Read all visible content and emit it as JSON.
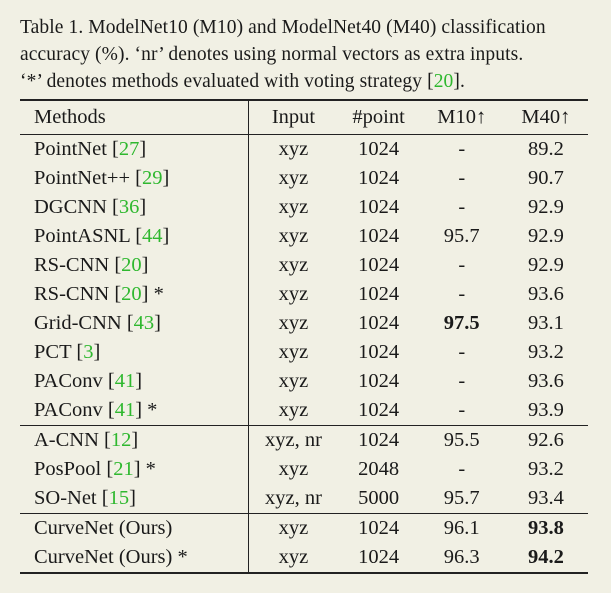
{
  "caption": {
    "line1": "Table 1. ModelNet10 (M10) and ModelNet40 (M40) classification",
    "line2": "accuracy (%).  ‘nr’ denotes using normal vectors as extra inputs.",
    "line3_prefix": "‘*’ denotes methods evaluated with voting strategy [",
    "line3_cite": "20",
    "line3_suffix": "]."
  },
  "table": {
    "headers": [
      "Methods",
      "Input",
      "#point",
      "M10↑",
      "M40↑"
    ],
    "groups": [
      [
        {
          "name": "PointNet ",
          "cite": "27",
          "star": "",
          "input": "xyz",
          "points": "1024",
          "m10": "-",
          "m40": "89.2"
        },
        {
          "name": "PointNet++ ",
          "cite": "29",
          "star": "",
          "input": "xyz",
          "points": "1024",
          "m10": "-",
          "m40": "90.7"
        },
        {
          "name": "DGCNN ",
          "cite": "36",
          "star": "",
          "input": "xyz",
          "points": "1024",
          "m10": "-",
          "m40": "92.9"
        },
        {
          "name": "PointASNL ",
          "cite": "44",
          "star": "",
          "input": "xyz",
          "points": "1024",
          "m10": "95.7",
          "m40": "92.9"
        },
        {
          "name": "RS-CNN ",
          "cite": "20",
          "star": "",
          "input": "xyz",
          "points": "1024",
          "m10": "-",
          "m40": "92.9"
        },
        {
          "name": "RS-CNN ",
          "cite": "20",
          "star": " *",
          "input": "xyz",
          "points": "1024",
          "m10": "-",
          "m40": "93.6"
        },
        {
          "name": "Grid-CNN ",
          "cite": "43",
          "star": "",
          "input": "xyz",
          "points": "1024",
          "m10": "97.5",
          "m40": "93.1",
          "m10_bold": true
        },
        {
          "name": "PCT ",
          "cite": "3",
          "star": "",
          "input": "xyz",
          "points": "1024",
          "m10": "-",
          "m40": "93.2"
        },
        {
          "name": "PAConv ",
          "cite": "41",
          "star": "",
          "input": "xyz",
          "points": "1024",
          "m10": "-",
          "m40": "93.6"
        },
        {
          "name": "PAConv ",
          "cite": "41",
          "star": " *",
          "input": "xyz",
          "points": "1024",
          "m10": "-",
          "m40": "93.9"
        }
      ],
      [
        {
          "name": "A-CNN ",
          "cite": "12",
          "star": "",
          "input": "xyz, nr",
          "points": "1024",
          "m10": "95.5",
          "m40": "92.6"
        },
        {
          "name": "PosPool ",
          "cite": "21",
          "star": " *",
          "input": "xyz",
          "points": "2048",
          "m10": "-",
          "m40": "93.2"
        },
        {
          "name": "SO-Net ",
          "cite": "15",
          "star": "",
          "input": "xyz, nr",
          "points": "5000",
          "m10": "95.7",
          "m40": "93.4"
        }
      ],
      [
        {
          "name": "CurveNet (Ours)",
          "cite": "",
          "star": "",
          "input": "xyz",
          "points": "1024",
          "m10": "96.1",
          "m40": "93.8",
          "m40_bold": true
        },
        {
          "name": "CurveNet (Ours)",
          "cite": "",
          "star": " *",
          "input": "xyz",
          "points": "1024",
          "m10": "96.3",
          "m40": "94.2",
          "m40_bold": true
        }
      ]
    ]
  }
}
